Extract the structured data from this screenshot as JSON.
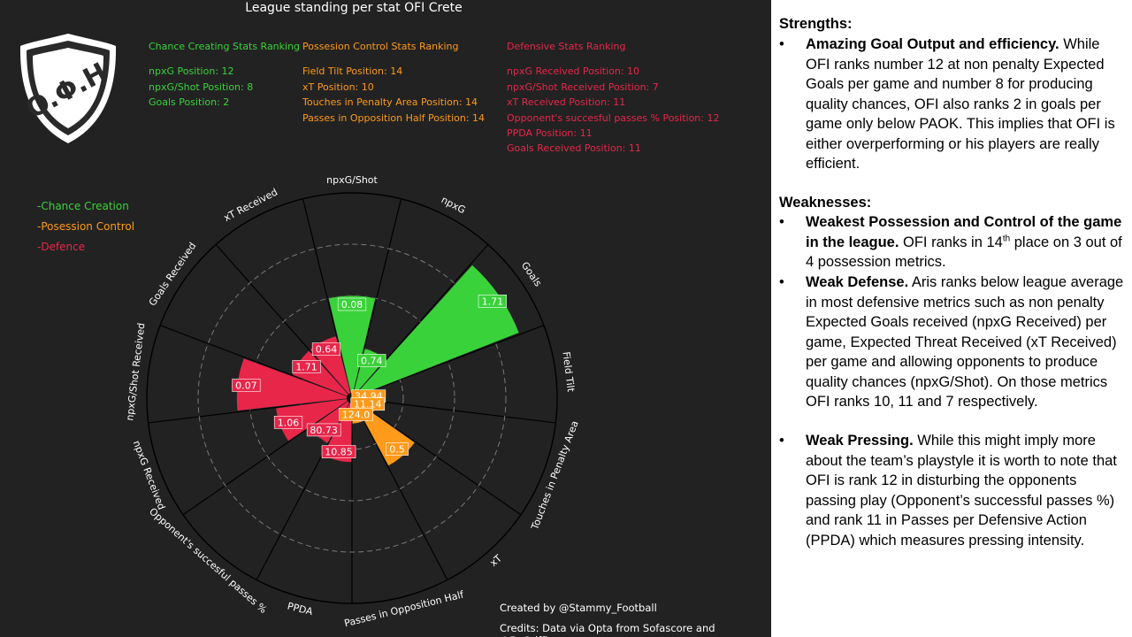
{
  "title": "League standing per stat OFI Crete",
  "logo": {
    "text": "O.Φ.H"
  },
  "rankings": {
    "chance": {
      "heading": "Chance Creating Stats Ranking",
      "items": [
        "npxG Position: 12",
        "npxG/Shot Position: 8",
        "Goals Position: 2"
      ]
    },
    "possession": {
      "heading": "Possesion Control Stats Ranking",
      "items": [
        "Field Tilt Position: 14",
        "xT Position: 10",
        "Touches in Penalty Area Position: 14",
        "Passes in Opposition Half Position: 14"
      ]
    },
    "defence": {
      "heading": "Defensive Stats Ranking",
      "items": [
        "npxG Received Position: 10",
        "npxG/Shot Received Position: 7",
        "xT Received Position: 11",
        "Opponent's succesful passes % Position: 12",
        "PPDA Position: 11",
        "Goals Received Position: 11"
      ]
    }
  },
  "legend": [
    "-Chance Creation",
    "-Posession Control",
    "-Defence"
  ],
  "colors": {
    "chance": "#3ad23a",
    "possession": "#ff9a1a",
    "defence": "#e8264a",
    "background": "#222222"
  },
  "chart_data": {
    "type": "polar-bar",
    "title": "League standing per stat OFI Crete",
    "r_description": "bar length = inverted league position (max 16)",
    "categories": [
      {
        "name": "npxG/Shot",
        "group": "chance",
        "position": 8,
        "label": "0.08"
      },
      {
        "name": "npxG",
        "group": "chance",
        "position": 12,
        "label": "0.74"
      },
      {
        "name": "Goals",
        "group": "chance",
        "position": 2,
        "label": "1.71"
      },
      {
        "name": "Field Tilt",
        "group": "possession",
        "position": 14,
        "label": "34.94"
      },
      {
        "name": "Touches in Penalty Area",
        "group": "possession",
        "position": 14,
        "label": "11.14"
      },
      {
        "name": "xT",
        "group": "possession",
        "position": 10,
        "label": "0.5"
      },
      {
        "name": "Passes in Opposition Half",
        "group": "possession",
        "position": 14,
        "label": "124.0"
      },
      {
        "name": "PPDA",
        "group": "defence",
        "position": 11,
        "label": "10.85"
      },
      {
        "name": "Opponent's succesful passes %",
        "group": "defence",
        "position": 12,
        "label": "80.73"
      },
      {
        "name": "npxG Received",
        "group": "defence",
        "position": 10,
        "label": "1.06"
      },
      {
        "name": "npxG/Shot Received",
        "group": "defence",
        "position": 7,
        "label": "0.07"
      },
      {
        "name": "Goals Received",
        "group": "defence",
        "position": 11,
        "label": "1.71"
      },
      {
        "name": "xT Received",
        "group": "defence",
        "position": 11,
        "label": "0.64"
      }
    ],
    "rmax": 16,
    "grid": true,
    "legend_position": "top-left"
  },
  "credits": {
    "created_by": "Created by @Stammy_Football",
    "data": "Credits: Data via Opta from Sofascore and @BeGriffis"
  },
  "analysis": {
    "strengths_title": "Strengths:",
    "strengths": [
      {
        "bold": "Amazing Goal Output and efficiency.",
        "text": " While OFI ranks number 12 at non penalty Expected Goals per game and number 8 for producing quality chances, OFI also ranks 2 in goals per game only below PAOK. This implies that OFI is either overperforming or his players are really efficient."
      }
    ],
    "weaknesses_title": "Weaknesses:",
    "weaknesses": [
      {
        "bold": "Weakest Possession and Control of the game in the league.",
        "text_before": " OFI ranks in 14",
        "sup": "th",
        "text_after": " place on 3 out of 4 possession metrics."
      },
      {
        "bold": "Weak Defense.",
        "text": " Aris ranks below league average in most defensive metrics such as non penalty Expected Goals received (npxG Received) per game, Expected Threat Received (xT Received) per game and allowing opponents to produce quality chances (npxG/Shot). On those metrics OFI ranks 10, 11 and 7 respectively."
      },
      {
        "bold": "Weak Pressing.",
        "text": " While this might imply more about the team’s playstyle it is worth to note that OFI is rank 12 in disturbing the opponents passing play (Opponent’s successful passes %) and rank 11 in Passes per Defensive Action (PPDA) which measures pressing intensity."
      }
    ],
    "bullet": "•"
  }
}
